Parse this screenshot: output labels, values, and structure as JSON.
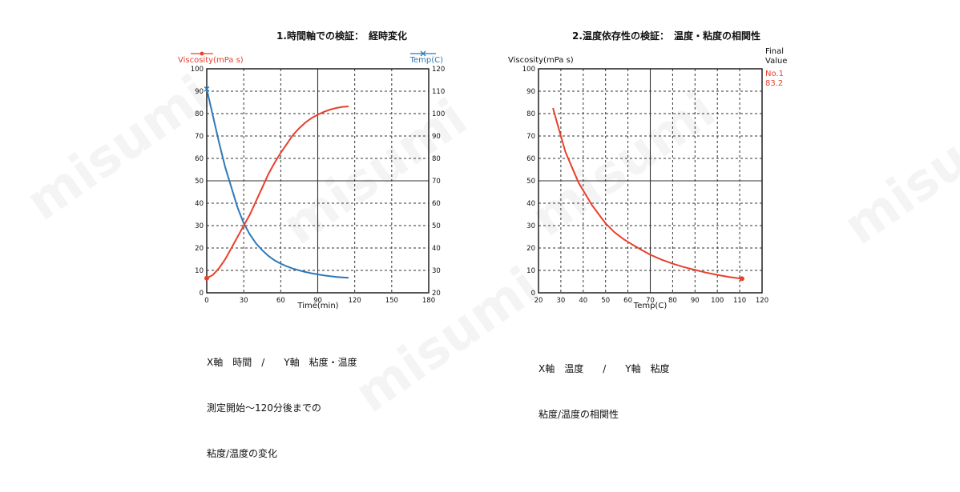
{
  "watermark": "misumi",
  "colors": {
    "viscosity": "#e8402c",
    "temp": "#2e78b8",
    "grid": "#333333",
    "text": "#111111"
  },
  "chart_data": [
    {
      "type": "line",
      "title": "1.時間軸での検証：　経時変化",
      "xlabel": "Time(min)",
      "ylabel_left": "Viscosity(mPa s)",
      "ylabel_right": "Temp(C)",
      "xlim": [
        0,
        180
      ],
      "ylim_left": [
        0,
        100
      ],
      "ylim_right": [
        20,
        120
      ],
      "x_ticks": [
        "0",
        "30",
        "60",
        "90",
        "120",
        "150",
        "180"
      ],
      "y_ticks_left": [
        "0",
        "10",
        "20",
        "30",
        "40",
        "50",
        "60",
        "70",
        "80",
        "90",
        "100"
      ],
      "y_ticks_right": [
        "20",
        "30",
        "40",
        "50",
        "60",
        "70",
        "80",
        "90",
        "100",
        "110",
        "120"
      ],
      "grid": true,
      "series": [
        {
          "name": "Viscosity(mPa s)",
          "axis": "left",
          "color": "#e8402c",
          "marker": "circle",
          "x": [
            0,
            5,
            10,
            15,
            20,
            25,
            30,
            35,
            40,
            45,
            50,
            55,
            60,
            65,
            70,
            75,
            80,
            85,
            90,
            95,
            100,
            105,
            110,
            115
          ],
          "y": [
            6.5,
            8,
            11,
            15,
            20,
            25,
            30,
            35,
            41,
            47,
            53,
            58,
            62.5,
            66.5,
            70.5,
            73.5,
            76,
            78,
            79.5,
            80.8,
            81.8,
            82.5,
            83,
            83.2
          ]
        },
        {
          "name": "Temp(C)",
          "axis": "right",
          "color": "#2e78b8",
          "marker": "x",
          "x": [
            0,
            5,
            10,
            15,
            20,
            25,
            30,
            35,
            40,
            45,
            50,
            55,
            60,
            65,
            70,
            75,
            80,
            85,
            90,
            95,
            100,
            105,
            110,
            115
          ],
          "y": [
            111,
            99,
            87,
            76,
            67,
            58,
            51,
            46,
            42,
            39,
            36.5,
            34.5,
            33,
            31.8,
            30.8,
            30,
            29.3,
            28.7,
            28.2,
            27.8,
            27.4,
            27.1,
            26.9,
            26.7
          ]
        }
      ]
    },
    {
      "type": "line",
      "title": "2.温度依存性の検証：　温度・粘度の相関性",
      "xlabel": "Temp(C)",
      "ylabel": "Viscosity(mPa s)",
      "xlim": [
        20,
        120
      ],
      "ylim": [
        0,
        100
      ],
      "x_ticks": [
        "20",
        "30",
        "40",
        "50",
        "60",
        "70",
        "80",
        "90",
        "100",
        "110",
        "120"
      ],
      "y_ticks": [
        "0",
        "10",
        "20",
        "30",
        "40",
        "50",
        "60",
        "70",
        "80",
        "90",
        "100"
      ],
      "grid": true,
      "legend": {
        "header_line1": "Final",
        "header_line2": "Value",
        "entry_name": "No.1",
        "entry_value": "83.2",
        "placement": "top-right outside"
      },
      "series": [
        {
          "name": "No.1",
          "color": "#e8402c",
          "marker": "circle-end",
          "x": [
            26.5,
            28,
            30,
            32,
            35,
            38,
            41,
            44,
            47,
            50,
            54,
            58,
            62,
            66,
            70,
            75,
            80,
            85,
            90,
            95,
            100,
            105,
            111
          ],
          "y": [
            82.5,
            77,
            70,
            63,
            56,
            49,
            44,
            39,
            35,
            31,
            27,
            24,
            21.5,
            19.2,
            17,
            14.8,
            13,
            11.5,
            10.2,
            9,
            8,
            7.1,
            6.3
          ]
        }
      ]
    }
  ],
  "captions": {
    "left": {
      "line1": "X軸　時間　/　　Y軸　粘度・温度",
      "line2": "測定開始～120分後までの",
      "line3": "粘度/温度の変化"
    },
    "right": {
      "line1": "X軸　温度　　/　　Y軸　粘度",
      "line2": "粘度/温度の相関性"
    }
  }
}
